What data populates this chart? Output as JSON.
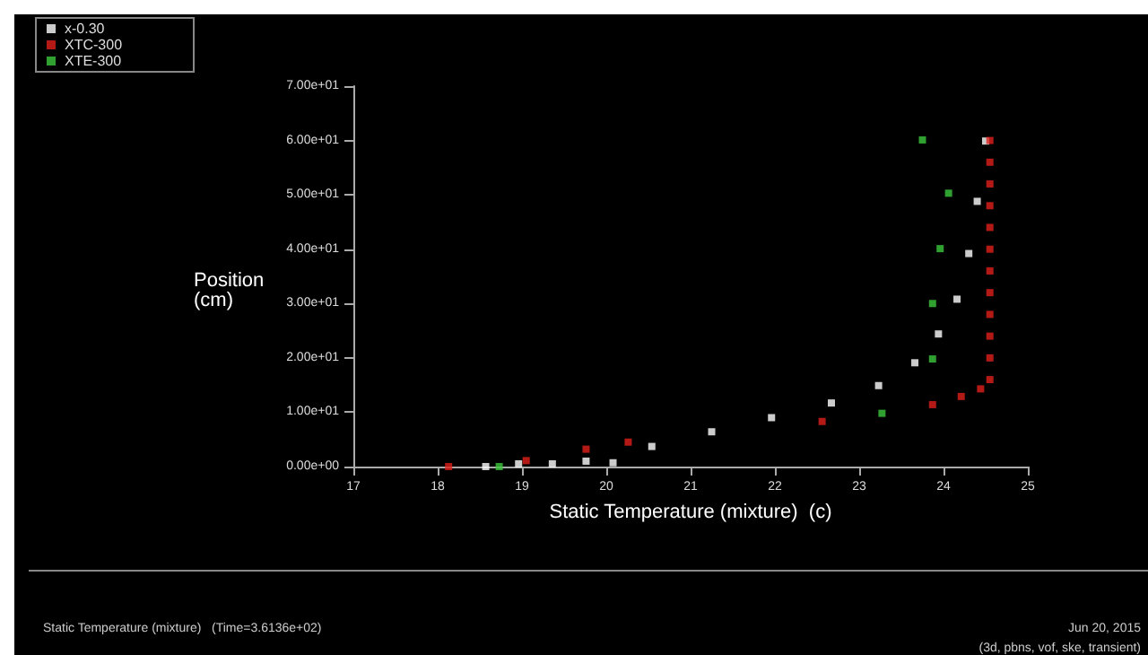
{
  "chart_data": {
    "type": "scatter",
    "xlabel": "Static Temperature (mixture)  (c)",
    "ylabel": "Position\n(cm)",
    "xlim": [
      17,
      25
    ],
    "xticks": [
      17,
      18,
      19,
      20,
      21,
      22,
      23,
      24,
      25
    ],
    "ylim": [
      0,
      70
    ],
    "yticks": [
      {
        "value": 0,
        "label": "0.00e+00"
      },
      {
        "value": 10,
        "label": "1.00e+01"
      },
      {
        "value": 20,
        "label": "2.00e+01"
      },
      {
        "value": 30,
        "label": "3.00e+01"
      },
      {
        "value": 40,
        "label": "4.00e+01"
      },
      {
        "value": 50,
        "label": "5.00e+01"
      },
      {
        "value": 60,
        "label": "6.00e+01"
      },
      {
        "value": 70,
        "label": "7.00e+01"
      }
    ],
    "grid": false,
    "legend": "top left",
    "marker": "square",
    "annotations": [
      "Static Temperature (mixture)   (Time=3.6136e+02)",
      "Jun 20, 2015",
      "(3d, pbns, vof, ske, transient)"
    ],
    "series": [
      {
        "name": "x-0.30",
        "color": "#ffffff",
        "x": [
          18.57,
          18.96,
          19.36,
          19.76,
          20.08,
          20.54,
          21.25,
          21.96,
          22.67,
          23.23,
          23.66,
          23.94,
          24.16,
          24.3,
          24.4,
          24.5
        ],
        "values": [
          0,
          0.5,
          0.5,
          1,
          0.7,
          3.7,
          6.4,
          9.0,
          11.7,
          14.9,
          19.1,
          24.4,
          30.8,
          39.2,
          48.8,
          59.9
        ]
      },
      {
        "name": "XTC-300",
        "color": "#e0201c",
        "x": [
          18.13,
          19.05,
          19.76,
          20.26,
          22.56,
          23.87,
          24.21,
          24.44,
          24.55,
          24.55,
          24.55,
          24.55,
          24.55,
          24.55,
          24.55,
          24.55,
          24.55,
          24.55,
          24.55,
          24.55
        ],
        "values": [
          0,
          1.1,
          3.2,
          4.5,
          8.3,
          11.4,
          12.9,
          14.3,
          16,
          20,
          24,
          28,
          32,
          36,
          40,
          44,
          48,
          52,
          56,
          60
        ]
      },
      {
        "name": "XTE-300",
        "color": "#3cc83c",
        "x": [
          18.73,
          23.27,
          23.87,
          23.87,
          23.96,
          24.06,
          23.75
        ],
        "values": [
          0,
          9.8,
          19.8,
          30.0,
          40.1,
          50.3,
          60.1
        ]
      }
    ]
  }
}
